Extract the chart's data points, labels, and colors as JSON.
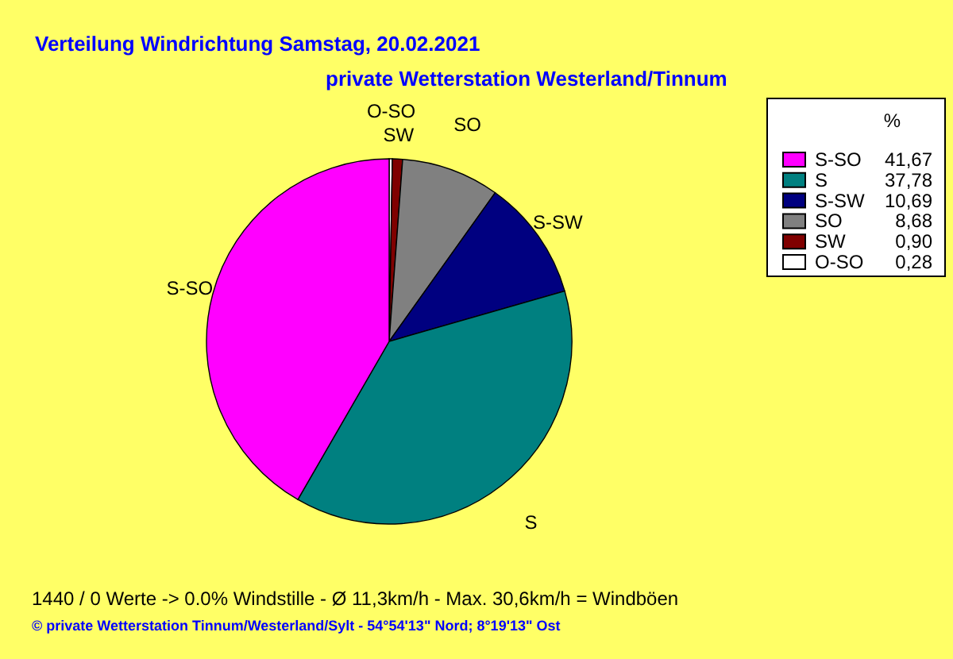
{
  "chart_data": {
    "type": "pie",
    "title": "Verteilung Windrichtung   Samstag, 20.02.2021",
    "subtitle": "private Wetterstation Westerland/Tinnum",
    "categories": [
      "S-SO",
      "S",
      "S-SW",
      "SO",
      "SW",
      "O-SO"
    ],
    "values": [
      41.67,
      37.78,
      10.69,
      8.68,
      0.9,
      0.28
    ],
    "value_labels": [
      "41,67",
      "37,78",
      "10,69",
      "8,68",
      "0,90",
      "0,28"
    ],
    "colors": [
      "#ff00ff",
      "#008080",
      "#000080",
      "#808080",
      "#800000",
      "#ffffff"
    ],
    "legend_title": "%",
    "legend": "top right",
    "annotations": [
      "1440 / 0 Werte  -> 0.0% Windstille   -   Ø 11,3km/h  -  Max. 30,6km/h = Windböen",
      "© private Wetterstation Tinnum/Westerland/Sylt  -  54°54'13\" Nord; 8°19'13\" Ost"
    ]
  }
}
